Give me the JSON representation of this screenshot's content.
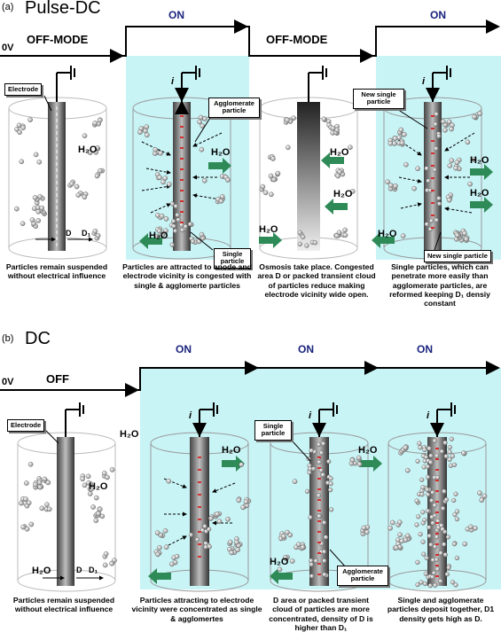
{
  "panel_a": {
    "label": "(a)",
    "title": "Pulse-DC",
    "voltage": "0V",
    "modes": [
      "OFF-MODE",
      "OFF-MODE"
    ],
    "on_labels": [
      "ON",
      "ON"
    ],
    "callouts": {
      "electrode": "Electrode",
      "agglomerate": "Agglomerate particle",
      "single": "Single particle",
      "new_single_top": "New single particle",
      "new_single_bottom": "New single particle"
    },
    "symbols": {
      "current": "i",
      "water": "H₂O",
      "d": "D",
      "d1": "D₁"
    },
    "captions": [
      "Particles remain suspended without electrical influence",
      "Particles are attracted to anode and electrode vicinity is congested with single & agglomerte particles",
      "Osmosis take place. Congested area D or packed transient cloud of particles reduce making electrode vicinity wide open.",
      "Single particles, which can penetrate more easily than agglomerate particles, are reformed keeping D₁ densiy constant"
    ]
  },
  "panel_b": {
    "label": "(b)",
    "title": "DC",
    "voltage": "0V",
    "modes": [
      "OFF"
    ],
    "on_labels": [
      "ON",
      "ON",
      "ON"
    ],
    "callouts": {
      "electrode": "Electrode",
      "single": "Single particle",
      "agglomerate": "Agglomerate particle"
    },
    "symbols": {
      "current": "i",
      "water": "H₂O",
      "d": "D",
      "d1": "D₁"
    },
    "captions": [
      "Particles remain suspended without electrical influence",
      "Particles attracting to electrode vicinity were concentrated as single & agglomertes",
      "D area or packed transient cloud of particles are more concentrated, density of D is higher than D₁",
      "Single and agglomerate particles deposit together, D1 density gets high as D."
    ]
  },
  "colors": {
    "on_shade": "#c9f4f6",
    "arrow_green": "#2e8b57",
    "particle": "#cfcfcf",
    "charge": "#d32f2f",
    "on_text": "#1a237e"
  }
}
